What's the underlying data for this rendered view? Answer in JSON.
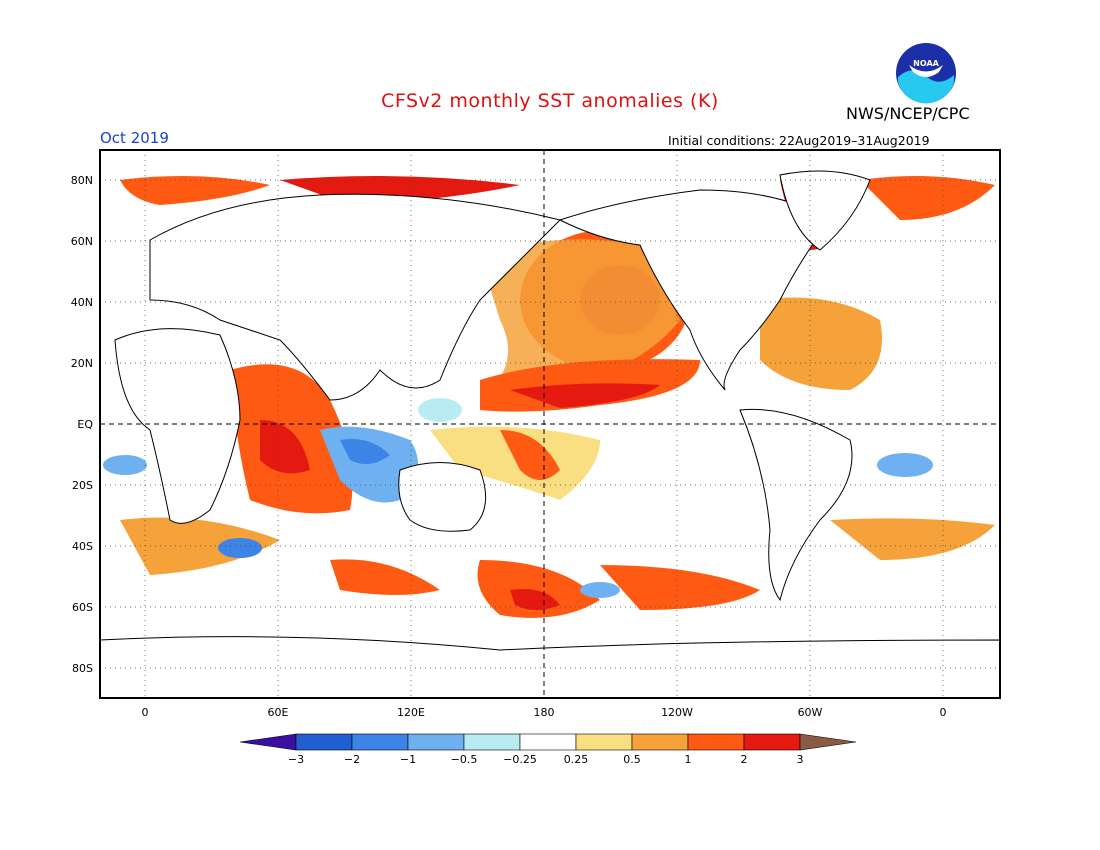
{
  "header": {
    "title": "CFSv2 monthly SST anomalies (K)",
    "agency": "NWS/NCEP/CPC",
    "logo_text": "NOAA",
    "month": "Oct 2019",
    "initial_conditions": "Initial conditions: 22Aug2019–31Aug2019"
  },
  "map": {
    "lat_labels": [
      "80N",
      "60N",
      "40N",
      "20N",
      "EQ",
      "20S",
      "40S",
      "60S",
      "80S"
    ],
    "lon_labels": [
      "0",
      "60E",
      "120E",
      "180",
      "120W",
      "60W",
      "0"
    ]
  },
  "colorbar": {
    "tick_labels": [
      "−3",
      "−2",
      "−1",
      "−0.5",
      "−0.25",
      "0.25",
      "0.5",
      "1",
      "2",
      "3"
    ],
    "colors": {
      "lt_m3": "#3b0fa0",
      "m3_m2": "#1f5fd0",
      "m2_m1": "#3c84e6",
      "m1_m05": "#6fb0f0",
      "m05_m025": "#b8ecf2",
      "m025_025": "#ffffff",
      "p025_05": "#f9df82",
      "p05_1": "#f5a23a",
      "p1_2": "#ff5a14",
      "p2_3": "#e41a10",
      "gt_3": "#b00808",
      "over": "#8a5a44"
    }
  }
}
